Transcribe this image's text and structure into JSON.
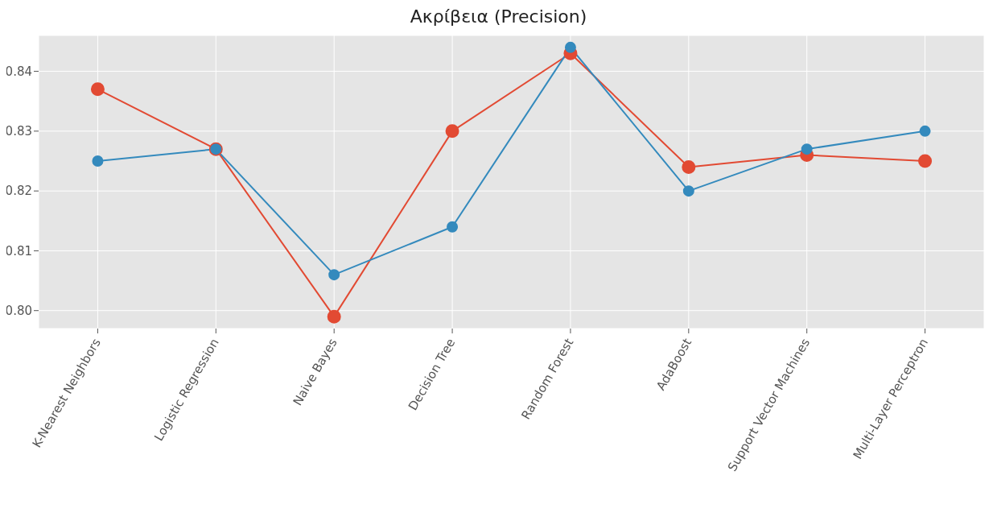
{
  "chart_data": {
    "type": "line",
    "title": "Ακρίβεια (Precision)",
    "categories": [
      "K-Nearest Neighbors",
      "Logistic Regression",
      "Naive Bayes",
      "Decision Tree",
      "Random Forest",
      "AdaBoost",
      "Support Vector Machines",
      "Multi-Layer Perceptron"
    ],
    "series": [
      {
        "color": "#e24a33",
        "values": [
          0.837,
          0.827,
          0.799,
          0.83,
          0.843,
          0.824,
          0.826,
          0.825
        ]
      },
      {
        "color": "#348abd",
        "values": [
          0.825,
          0.827,
          0.806,
          0.814,
          0.844,
          0.82,
          0.827,
          0.83
        ]
      }
    ],
    "ylim": [
      0.797,
      0.846
    ],
    "yticks": [
      {
        "value": 0.8,
        "label": "0.80"
      },
      {
        "value": 0.81,
        "label": "0.81"
      },
      {
        "value": 0.82,
        "label": "0.82"
      },
      {
        "value": 0.83,
        "label": "0.83"
      },
      {
        "value": 0.84,
        "label": "0.84"
      }
    ],
    "grid": true,
    "marker": "circle",
    "line_style": "solid"
  }
}
